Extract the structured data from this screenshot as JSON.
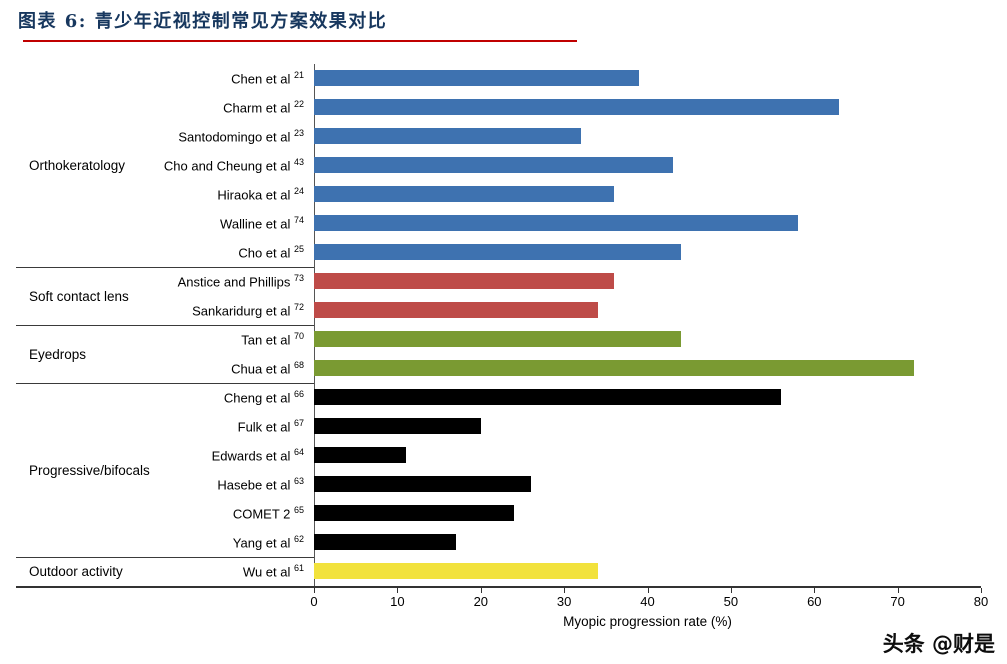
{
  "header": {
    "title": "图表 6: 青少年近视控制常见方案效果对比",
    "title_color": "#17375E",
    "underline_color": "#C00000"
  },
  "watermark": "头条 @财是",
  "chart_data": {
    "type": "bar",
    "orientation": "horizontal",
    "title": "",
    "xlabel": "Myopic progression rate (%)",
    "ylabel": "",
    "xlim": [
      0,
      80
    ],
    "xticks": [
      0,
      10,
      20,
      30,
      40,
      50,
      60,
      70,
      80
    ],
    "grid": false,
    "legend": "none",
    "groups": [
      {
        "name": "Orthokeratology",
        "color": "#3E72B0",
        "studies": [
          {
            "label": "Chen et al",
            "sup": "21",
            "value": 39
          },
          {
            "label": "Charm et al",
            "sup": "22",
            "value": 63
          },
          {
            "label": "Santodomingo et al",
            "sup": "23",
            "value": 32
          },
          {
            "label": "Cho and Cheung et al",
            "sup": "43",
            "value": 43
          },
          {
            "label": "Hiraoka et al",
            "sup": "24",
            "value": 36
          },
          {
            "label": "Walline et al",
            "sup": "74",
            "value": 58
          },
          {
            "label": "Cho et al",
            "sup": "25",
            "value": 44
          }
        ]
      },
      {
        "name": "Soft contact lens",
        "color": "#BE4B48",
        "studies": [
          {
            "label": "Anstice and Phillips",
            "sup": "73",
            "value": 36
          },
          {
            "label": "Sankaridurg et al",
            "sup": "72",
            "value": 34
          }
        ]
      },
      {
        "name": "Eyedrops",
        "color": "#7A9A32",
        "studies": [
          {
            "label": "Tan et al",
            "sup": "70",
            "value": 44
          },
          {
            "label": "Chua et al",
            "sup": "68",
            "value": 72
          }
        ]
      },
      {
        "name": "Progressive/bifocals",
        "color": "#000000",
        "studies": [
          {
            "label": "Cheng et al",
            "sup": "66",
            "value": 56
          },
          {
            "label": "Fulk et al",
            "sup": "67",
            "value": 20
          },
          {
            "label": "Edwards et al",
            "sup": "64",
            "value": 11
          },
          {
            "label": "Hasebe et al",
            "sup": "63",
            "value": 26
          },
          {
            "label": "COMET 2",
            "sup": "65",
            "value": 24
          },
          {
            "label": "Yang et al",
            "sup": "62",
            "value": 17
          }
        ]
      },
      {
        "name": "Outdoor activity",
        "color": "#F2E23C",
        "studies": [
          {
            "label": "Wu et al",
            "sup": "61",
            "value": 34
          }
        ]
      }
    ]
  }
}
